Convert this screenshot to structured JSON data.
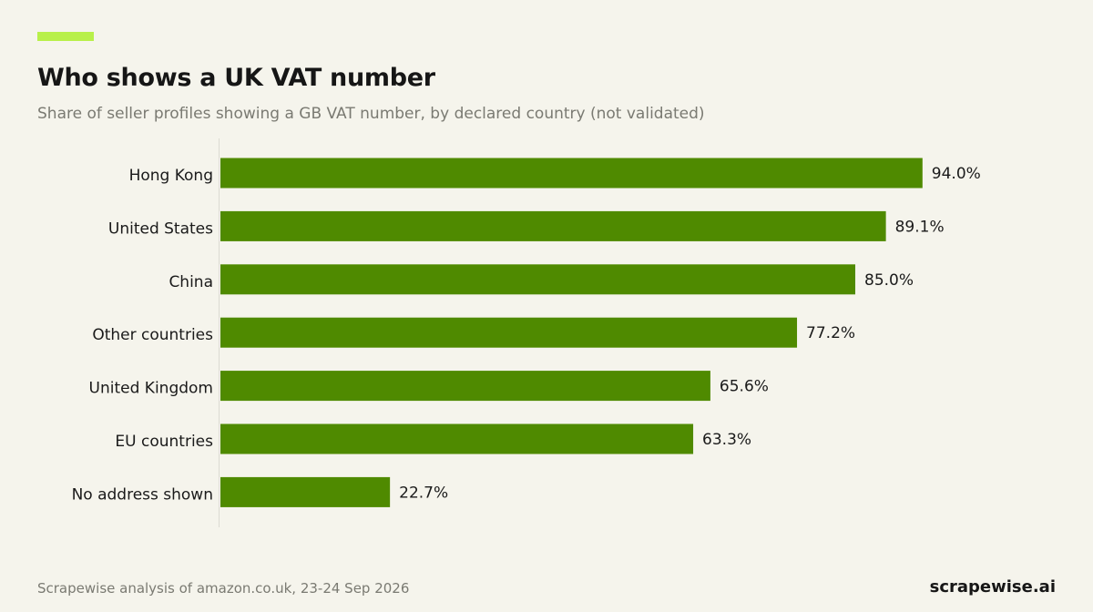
{
  "header": {
    "title": "Who shows a UK VAT number",
    "subtitle": "Share of seller profiles showing a GB VAT number, by declared country (not validated)"
  },
  "footer": {
    "source": "Scrapewise analysis of amazon.co.uk, 23-24 Sep 2026",
    "brand": "scrapewise.ai"
  },
  "colors": {
    "accent": "#b8f04a",
    "bar": "#4f8a00",
    "background": "#f5f4ec"
  },
  "chart_data": {
    "type": "bar",
    "orientation": "horizontal",
    "title": "Who shows a UK VAT number",
    "subtitle": "Share of seller profiles showing a GB VAT number, by declared country (not validated)",
    "categories": [
      "Hong Kong",
      "United States",
      "China",
      "Other countries",
      "United Kingdom",
      "EU countries",
      "No address shown"
    ],
    "values": [
      94.0,
      89.1,
      85.0,
      77.2,
      65.6,
      63.3,
      22.7
    ],
    "value_labels": [
      "94.0%",
      "89.1%",
      "85.0%",
      "77.2%",
      "65.6%",
      "63.3%",
      "22.7%"
    ],
    "unit": "%",
    "xlim": [
      0,
      100
    ],
    "grid": false,
    "legend": "none"
  }
}
